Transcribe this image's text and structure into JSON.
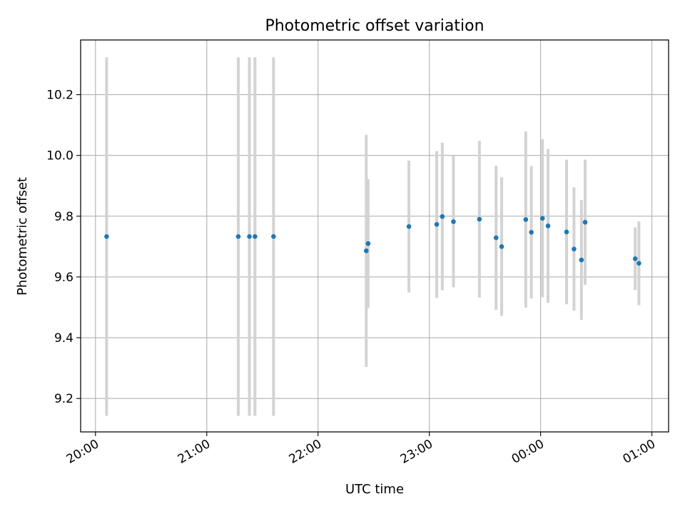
{
  "chart_data": {
    "type": "scatter",
    "title": "Photometric offset variation",
    "xlabel": "UTC time",
    "ylabel": "Photometric offset",
    "x_axis_kind": "time",
    "x_tick_labels": [
      "20:00",
      "21:00",
      "22:00",
      "23:00",
      "00:00",
      "01:00"
    ],
    "y_ticks": [
      9.2,
      9.4,
      9.6,
      9.8,
      10.0,
      10.2
    ],
    "y_tick_labels": [
      "9.2",
      "9.4",
      "9.6",
      "9.8",
      "10.0",
      "10.2"
    ],
    "xlim": [
      "19:52",
      "01:09"
    ],
    "ylim": [
      9.09,
      10.38
    ],
    "grid": true,
    "legend": "none",
    "colors": {
      "point": "#1f77b4",
      "errorbar": "#d3d3d3",
      "grid": "#b0b0b0"
    },
    "series": [
      {
        "x": [
          "20:06",
          "21:17",
          "21:23",
          "21:26",
          "21:36",
          "22:26",
          "22:27",
          "22:49",
          "23:04",
          "23:07",
          "23:13",
          "23:27",
          "23:36",
          "23:39",
          "23:52",
          "23:55",
          "00:01",
          "00:04",
          "00:14",
          "00:18",
          "00:22",
          "00:24",
          "00:51",
          "00:53"
        ],
        "y": [
          9.733,
          9.733,
          9.733,
          9.733,
          9.733,
          9.686,
          9.71,
          9.766,
          9.773,
          9.799,
          9.782,
          9.79,
          9.729,
          9.7,
          9.789,
          9.747,
          9.793,
          9.768,
          9.748,
          9.692,
          9.656,
          9.78,
          9.66,
          9.645
        ],
        "yerr": [
          0.59,
          0.59,
          0.59,
          0.59,
          0.59,
          0.382,
          0.212,
          0.217,
          0.242,
          0.243,
          0.216,
          0.258,
          0.237,
          0.228,
          0.29,
          0.218,
          0.26,
          0.253,
          0.238,
          0.203,
          0.197,
          0.206,
          0.103,
          0.138
        ]
      }
    ]
  }
}
